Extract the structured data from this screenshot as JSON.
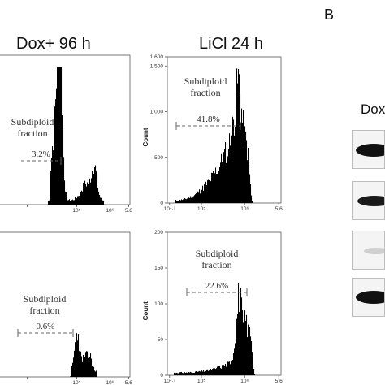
{
  "header": {
    "left_title": "Dox+ 96 h",
    "right_title": "LiCl 24 h",
    "panel_letter": "B",
    "blot_label": "Dox"
  },
  "chart_data": [
    {
      "type": "histogram",
      "id": "dox-top",
      "xticks": [],
      "xtick_labels_visible": [
        "10^5",
        "10^6",
        "5.6"
      ],
      "yticks": [],
      "ylabel": "",
      "annotation": {
        "text": "Subdiploid fraction",
        "percent": "3.2%"
      },
      "peaks": [
        {
          "x": 0.47,
          "value": 1.0
        },
        {
          "x": 0.72,
          "value": 0.23
        }
      ]
    },
    {
      "type": "histogram",
      "id": "licl-top",
      "xticks": [],
      "xtick_labels_visible": [
        "10^4.3",
        "10^5",
        "10^6",
        "5.6"
      ],
      "yticks": [
        0,
        500,
        1000,
        1500,
        1600
      ],
      "ytick_labels": [
        "0",
        "500",
        "1,000",
        "1,500",
        "1,600"
      ],
      "ylim": [
        0,
        1600
      ],
      "ylabel": "Count",
      "annotation": {
        "text": "Subdiploid fraction",
        "percent": "41.8%"
      },
      "peaks": [
        {
          "x": 0.6,
          "value": 1400
        }
      ]
    },
    {
      "type": "histogram",
      "id": "dox-bottom",
      "xtick_labels_visible": [
        "10^5",
        "10^6",
        "5.6"
      ],
      "ylabel": "",
      "annotation": {
        "text": "Subdiploid fraction",
        "percent": "0.6%"
      },
      "peaks": [
        {
          "x": 0.6,
          "value": 0.28
        }
      ]
    },
    {
      "type": "histogram",
      "id": "licl-bottom",
      "xtick_labels_visible": [
        "10^4.3",
        "10^5",
        "10^6",
        "5.6"
      ],
      "yticks": [
        0,
        50,
        100,
        150,
        200
      ],
      "ytick_labels": [
        "0",
        "50",
        "100",
        "150",
        "200"
      ],
      "ylim": [
        0,
        200
      ],
      "ylabel": "Count",
      "annotation": {
        "text": "Subdiploid fraction",
        "percent": "22.6%"
      },
      "peaks": [
        {
          "x": 0.64,
          "value": 140
        }
      ]
    }
  ]
}
